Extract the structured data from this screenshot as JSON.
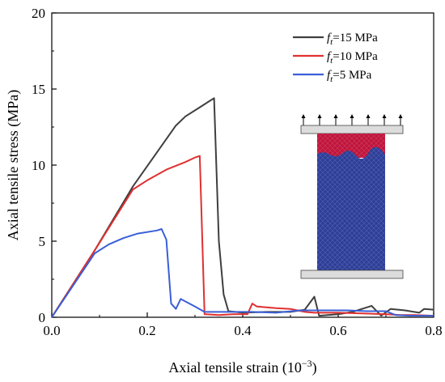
{
  "chart_data": {
    "type": "line",
    "xlabel": "Axial tensile strain (10",
    "xlabel_exp": "−3",
    "xlabel_close": ")",
    "ylabel": "Axial tensile stress (MPa)",
    "xlim": [
      0,
      0.8
    ],
    "ylim": [
      0,
      20
    ],
    "xticks": [
      "0.0",
      "0.2",
      "0.4",
      "0.6",
      "0.8"
    ],
    "yticks": [
      "0",
      "5",
      "10",
      "15",
      "20"
    ],
    "legend_position": "top-right",
    "grid": false,
    "series": [
      {
        "name_var": "f",
        "name_sub": "t",
        "name_rest": "=15 MPa",
        "color": "#3f3f3f",
        "points": [
          [
            0,
            0
          ],
          [
            0.09,
            4.4
          ],
          [
            0.17,
            8.6
          ],
          [
            0.26,
            12.6
          ],
          [
            0.28,
            13.2
          ],
          [
            0.31,
            13.8
          ],
          [
            0.33,
            14.2
          ],
          [
            0.34,
            14.4
          ],
          [
            0.35,
            5.0
          ],
          [
            0.36,
            1.5
          ],
          [
            0.37,
            0.4
          ],
          [
            0.4,
            0.3
          ],
          [
            0.45,
            0.35
          ],
          [
            0.5,
            0.35
          ],
          [
            0.53,
            0.5
          ],
          [
            0.55,
            1.35
          ],
          [
            0.56,
            0.1
          ],
          [
            0.6,
            0.2
          ],
          [
            0.63,
            0.35
          ],
          [
            0.67,
            0.75
          ],
          [
            0.69,
            0.1
          ],
          [
            0.71,
            0.55
          ],
          [
            0.74,
            0.45
          ],
          [
            0.77,
            0.3
          ],
          [
            0.78,
            0.55
          ],
          [
            0.8,
            0.5
          ]
        ]
      },
      {
        "name_var": "f",
        "name_sub": "t",
        "name_rest": "=10 MPa",
        "color": "#e03030",
        "points": [
          [
            0,
            0
          ],
          [
            0.09,
            4.4
          ],
          [
            0.17,
            8.4
          ],
          [
            0.2,
            9.0
          ],
          [
            0.24,
            9.7
          ],
          [
            0.28,
            10.2
          ],
          [
            0.3,
            10.5
          ],
          [
            0.31,
            10.6
          ],
          [
            0.32,
            0.2
          ],
          [
            0.35,
            0.15
          ],
          [
            0.38,
            0.2
          ],
          [
            0.41,
            0.2
          ],
          [
            0.42,
            0.9
          ],
          [
            0.43,
            0.7
          ],
          [
            0.47,
            0.6
          ],
          [
            0.5,
            0.55
          ],
          [
            0.53,
            0.35
          ],
          [
            0.55,
            0.3
          ],
          [
            0.6,
            0.3
          ],
          [
            0.65,
            0.25
          ],
          [
            0.7,
            0.2
          ],
          [
            0.73,
            0.15
          ],
          [
            0.76,
            0.15
          ],
          [
            0.8,
            0.1
          ]
        ]
      },
      {
        "name_var": "f",
        "name_sub": "t",
        "name_rest": "=5 MPa",
        "color": "#3a5fd6",
        "points": [
          [
            0,
            0
          ],
          [
            0.09,
            4.2
          ],
          [
            0.12,
            4.8
          ],
          [
            0.15,
            5.2
          ],
          [
            0.18,
            5.5
          ],
          [
            0.22,
            5.7
          ],
          [
            0.23,
            5.8
          ],
          [
            0.24,
            5.1
          ],
          [
            0.25,
            0.9
          ],
          [
            0.26,
            0.55
          ],
          [
            0.27,
            1.2
          ],
          [
            0.3,
            0.7
          ],
          [
            0.32,
            0.35
          ],
          [
            0.37,
            0.35
          ],
          [
            0.42,
            0.35
          ],
          [
            0.47,
            0.3
          ],
          [
            0.52,
            0.45
          ],
          [
            0.57,
            0.45
          ],
          [
            0.62,
            0.45
          ],
          [
            0.66,
            0.4
          ],
          [
            0.7,
            0.4
          ],
          [
            0.72,
            0.15
          ],
          [
            0.75,
            0.1
          ],
          [
            0.8,
            0.1
          ]
        ]
      }
    ]
  },
  "inset": {
    "top_color": "#c0143c",
    "body_color": "#2d3e99",
    "plate_color": "#dcdcdc"
  }
}
